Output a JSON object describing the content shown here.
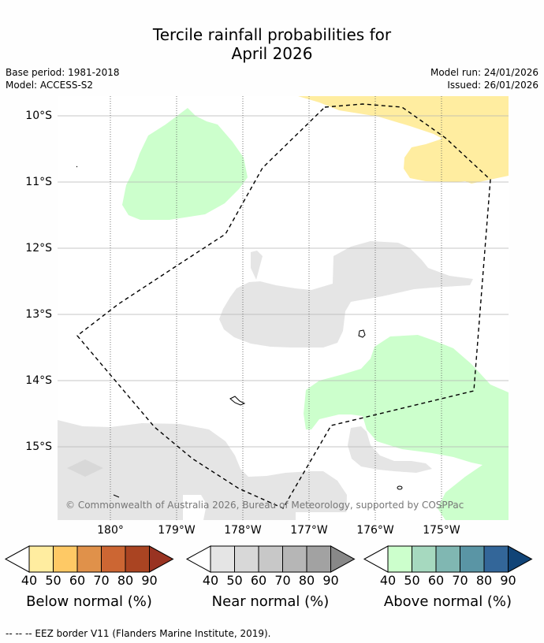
{
  "title": {
    "line1": "Tercile rainfall probabilities for",
    "line2": "April 2026"
  },
  "meta": {
    "base_period": "Base period: 1981-2018",
    "model": "Model: ACCESS-S2",
    "model_run": "Model run: 24/01/2026",
    "issued": "Issued: 26/01/2026"
  },
  "map": {
    "lat_labels": [
      "10°S",
      "11°S",
      "12°S",
      "13°S",
      "14°S",
      "15°S"
    ],
    "lon_labels": [
      "180°",
      "179°W",
      "178°W",
      "177°W",
      "176°W",
      "175°W"
    ],
    "copyright": "© Commonwealth of Australia 2026, Bureau of Meteorology, supported by COSPPac",
    "colors": {
      "below_40": "#ffeda0",
      "near_40": "#e5e5e5",
      "above_40": "#ccffcc"
    }
  },
  "legend": {
    "ticks": [
      "40",
      "50",
      "60",
      "70",
      "80",
      "90"
    ],
    "bars": [
      {
        "label": "Below normal (%)",
        "colors": [
          "#ffeda0",
          "#fec965",
          "#e0914a",
          "#cc6633",
          "#aa4422",
          "#993322"
        ]
      },
      {
        "label": "Near normal (%)",
        "colors": [
          "#e5e5e5",
          "#d8d8d8",
          "#c8c8c8",
          "#b6b6b6",
          "#a2a2a2",
          "#888888"
        ]
      },
      {
        "label": "Above normal (%)",
        "colors": [
          "#ccffcc",
          "#a6d9bf",
          "#80b7b2",
          "#5a95a5",
          "#336699",
          "#114477"
        ]
      }
    ]
  },
  "footnote": "--  --  -- EEZ border V11 (Flanders Marine Institute, 2019)."
}
